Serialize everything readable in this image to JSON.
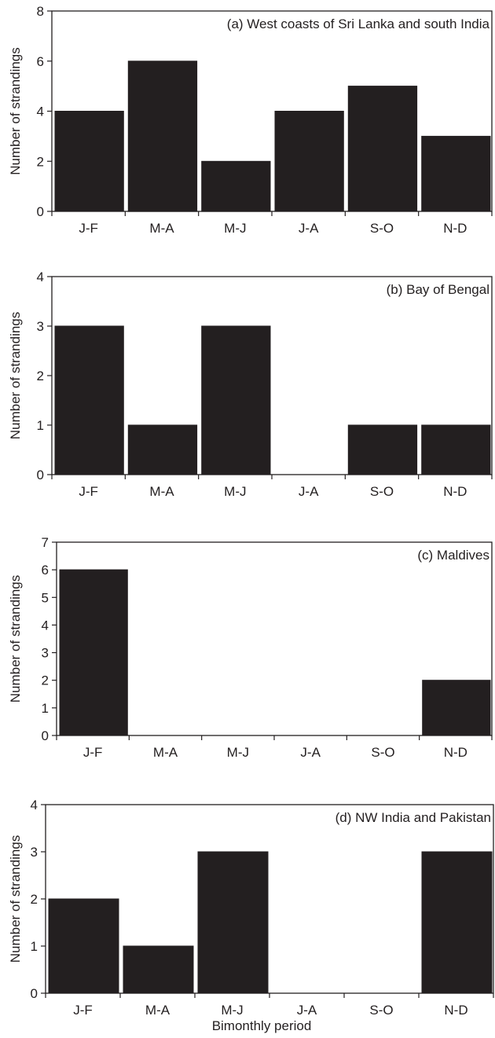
{
  "chart_data": [
    {
      "type": "bar",
      "title": "(a) West coasts of Sri Lanka and south India",
      "xlabel": "",
      "ylabel": "Number of strandings",
      "categories": [
        "J-F",
        "M-A",
        "M-J",
        "J-A",
        "S-O",
        "N-D"
      ],
      "values": [
        4,
        6,
        2,
        4,
        5,
        3
      ],
      "ylim": [
        0,
        8
      ],
      "yticks": [
        "0",
        "2",
        "4",
        "6",
        "8"
      ],
      "bar_color": "#231f20",
      "grid": false,
      "legend": "none"
    },
    {
      "type": "bar",
      "title": "(b) Bay of Bengal",
      "xlabel": "",
      "ylabel": "Number of strandings",
      "categories": [
        "J-F",
        "M-A",
        "M-J",
        "J-A",
        "S-O",
        "N-D"
      ],
      "values": [
        3,
        1,
        3,
        0,
        1,
        1
      ],
      "ylim": [
        0,
        4
      ],
      "yticks": [
        "0",
        "1",
        "2",
        "3",
        "4"
      ],
      "bar_color": "#231f20",
      "grid": false,
      "legend": "none"
    },
    {
      "type": "bar",
      "title": "(c) Maldives",
      "xlabel": "",
      "ylabel": "Number of strandings",
      "categories": [
        "J-F",
        "M-A",
        "M-J",
        "J-A",
        "S-O",
        "N-D"
      ],
      "values": [
        6,
        0,
        0,
        0,
        0,
        2
      ],
      "ylim": [
        0,
        7
      ],
      "yticks": [
        "0",
        "1",
        "2",
        "3",
        "4",
        "5",
        "6",
        "7"
      ],
      "bar_color": "#231f20",
      "grid": false,
      "legend": "none"
    },
    {
      "type": "bar",
      "title": "(d) NW India and Pakistan",
      "xlabel": "Bimonthly period",
      "ylabel": "Number of strandings",
      "categories": [
        "J-F",
        "M-A",
        "M-J",
        "J-A",
        "S-O",
        "N-D"
      ],
      "values": [
        2,
        1,
        3,
        0,
        0,
        3
      ],
      "ylim": [
        0,
        4
      ],
      "yticks": [
        "0",
        "1",
        "2",
        "3",
        "4"
      ],
      "bar_color": "#231f20",
      "grid": false,
      "legend": "none"
    }
  ]
}
